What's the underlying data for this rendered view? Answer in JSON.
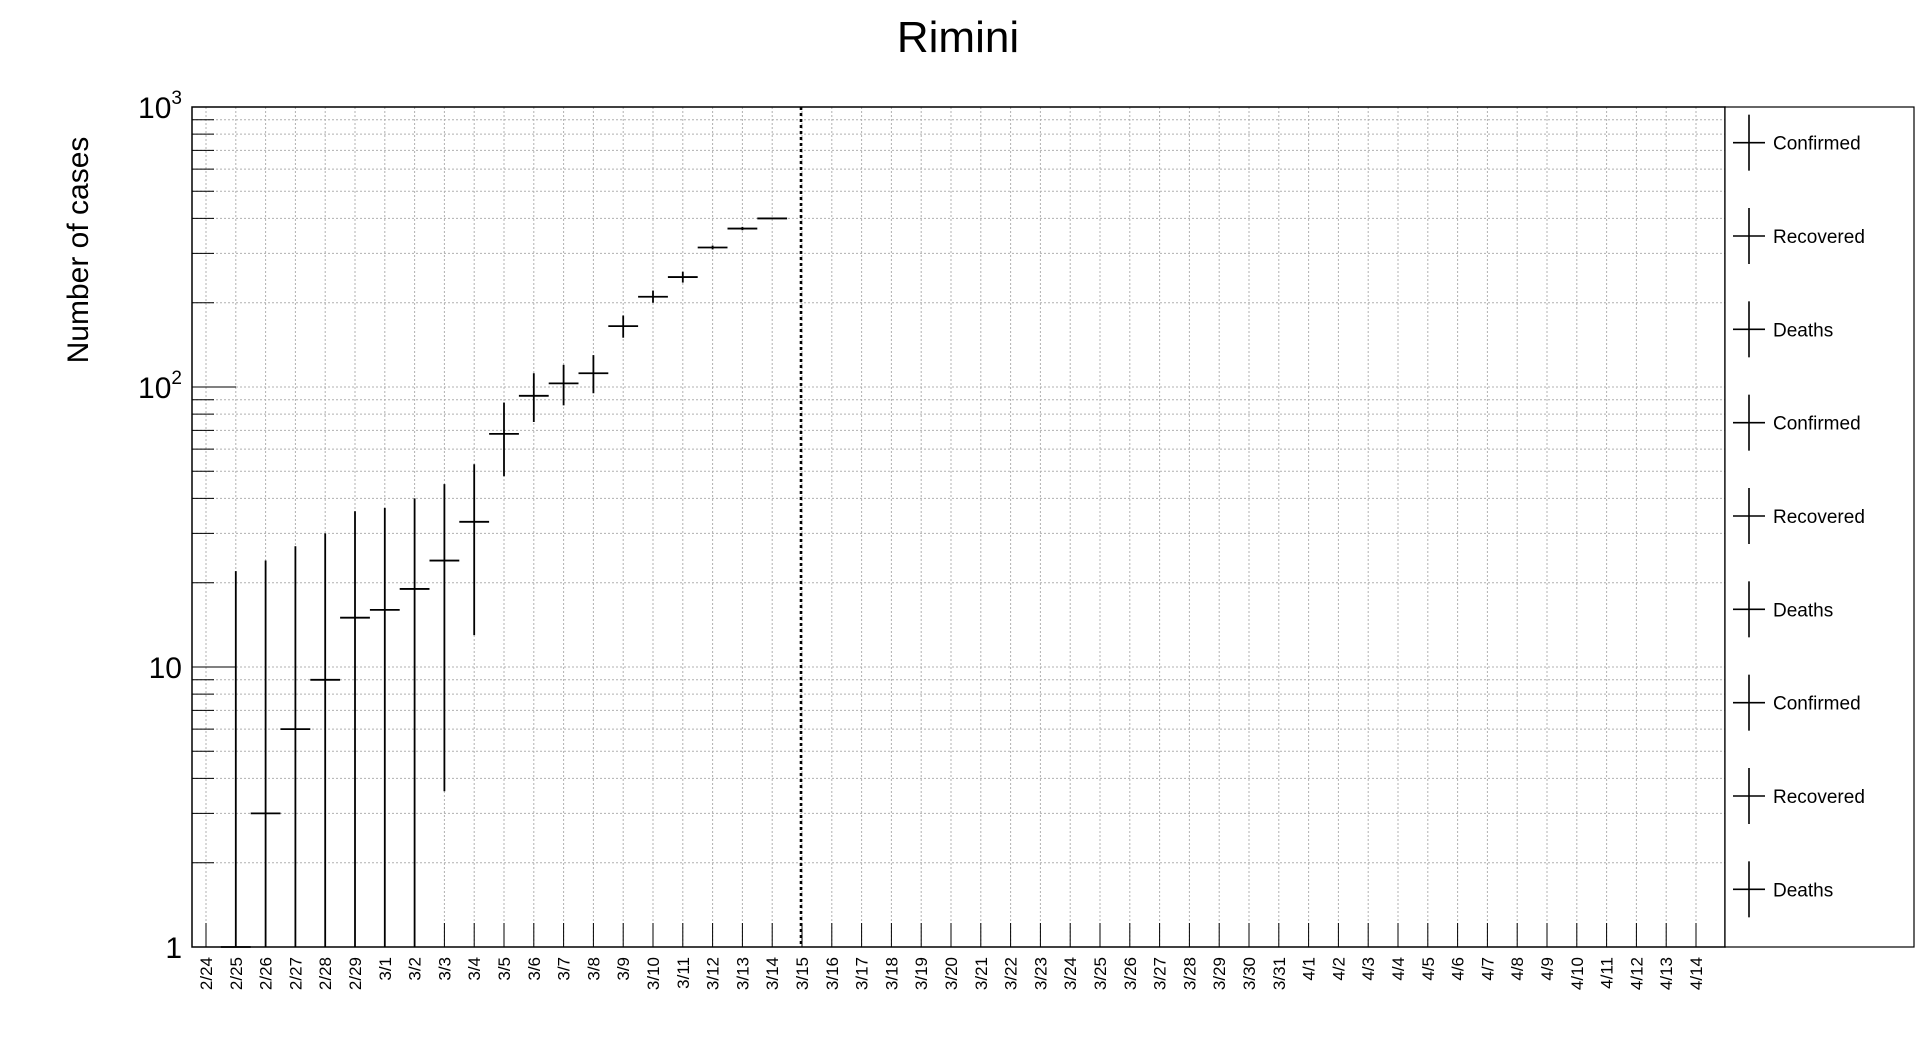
{
  "chart_data": {
    "type": "scatter",
    "title": "Rimini",
    "xlabel": "",
    "ylabel": "Number of cases",
    "yscale": "log",
    "ylim": [
      1,
      1000
    ],
    "grid": true,
    "legend_position": "right",
    "ytick_labels": [
      {
        "value": 1,
        "base": "1",
        "exp": ""
      },
      {
        "value": 10,
        "base": "10",
        "exp": ""
      },
      {
        "value": 100,
        "base": "10",
        "exp": "2"
      },
      {
        "value": 1000,
        "base": "10",
        "exp": "3"
      }
    ],
    "categories": [
      "2/24",
      "2/25",
      "2/26",
      "2/27",
      "2/28",
      "2/29",
      "3/1",
      "3/2",
      "3/3",
      "3/4",
      "3/5",
      "3/6",
      "3/7",
      "3/8",
      "3/9",
      "3/10",
      "3/11",
      "3/12",
      "3/13",
      "3/14",
      "3/15",
      "3/16",
      "3/17",
      "3/18",
      "3/19",
      "3/20",
      "3/21",
      "3/22",
      "3/23",
      "3/24",
      "3/25",
      "3/26",
      "3/27",
      "3/28",
      "3/29",
      "3/30",
      "3/31",
      "4/1",
      "4/2",
      "4/3",
      "4/4",
      "4/5",
      "4/6",
      "4/7",
      "4/8",
      "4/9",
      "4/10",
      "4/11",
      "4/12",
      "4/13",
      "4/14"
    ],
    "marker_date": "3/15",
    "series": [
      {
        "name": "Confirmed",
        "points": [
          {
            "date": "2/25",
            "value": 1,
            "err_low": 1,
            "err_high": 22
          },
          {
            "date": "2/26",
            "value": 3,
            "err_low": 1,
            "err_high": 24
          },
          {
            "date": "2/27",
            "value": 6,
            "err_low": 1,
            "err_high": 27
          },
          {
            "date": "2/28",
            "value": 9,
            "err_low": 1,
            "err_high": 30
          },
          {
            "date": "2/29",
            "value": 15,
            "err_low": 1,
            "err_high": 36
          },
          {
            "date": "3/1",
            "value": 16,
            "err_low": 1,
            "err_high": 37
          },
          {
            "date": "3/2",
            "value": 19,
            "err_low": 1,
            "err_high": 40
          },
          {
            "date": "3/3",
            "value": 24,
            "err_low": 3.6,
            "err_high": 45
          },
          {
            "date": "3/4",
            "value": 33,
            "err_low": 13,
            "err_high": 53
          },
          {
            "date": "3/5",
            "value": 68,
            "err_low": 48,
            "err_high": 88
          },
          {
            "date": "3/6",
            "value": 93,
            "err_low": 75,
            "err_high": 112
          },
          {
            "date": "3/7",
            "value": 103,
            "err_low": 86,
            "err_high": 120
          },
          {
            "date": "3/8",
            "value": 112,
            "err_low": 95,
            "err_high": 130
          },
          {
            "date": "3/9",
            "value": 165,
            "err_low": 150,
            "err_high": 180
          },
          {
            "date": "3/10",
            "value": 210,
            "err_low": 200,
            "err_high": 221
          },
          {
            "date": "3/11",
            "value": 247,
            "err_low": 236,
            "err_high": 258
          },
          {
            "date": "3/12",
            "value": 315,
            "err_low": 310,
            "err_high": 320
          },
          {
            "date": "3/13",
            "value": 368,
            "err_low": 363,
            "err_high": 373
          },
          {
            "date": "3/14",
            "value": 400,
            "err_low": 400,
            "err_high": 400
          }
        ]
      }
    ],
    "legend": [
      "Confirmed",
      "Recovered",
      "Deaths",
      "Confirmed",
      "Recovered",
      "Deaths",
      "Confirmed",
      "Recovered",
      "Deaths"
    ]
  }
}
